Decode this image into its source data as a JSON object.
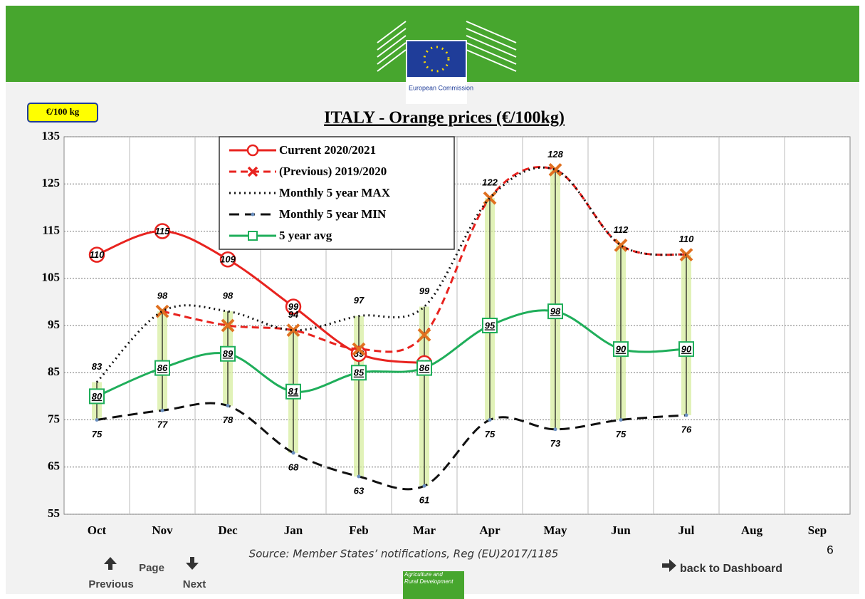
{
  "header": {
    "logo_text": "European Commission",
    "unit_badge": "€/100 kg"
  },
  "chart_data": {
    "type": "line",
    "title": "ITALY  -  Orange  prices    (€/100kg)",
    "categories": [
      "Oct",
      "Nov",
      "Dec",
      "Jan",
      "Feb",
      "Mar",
      "Apr",
      "May",
      "Jun",
      "Jul",
      "Aug",
      "Sep"
    ],
    "ylim": [
      55,
      135
    ],
    "yticks": [
      55,
      65,
      75,
      85,
      95,
      105,
      115,
      125,
      135
    ],
    "grid": true,
    "series": [
      {
        "name": "Current 2020/2021",
        "color": "#e8231f",
        "style": "solid",
        "marker": "circle",
        "values": [
          110,
          115,
          109,
          99,
          89,
          87,
          null,
          null,
          null,
          null,
          null,
          null
        ]
      },
      {
        "name": "(Previous) 2019/2020",
        "color": "#e8231f",
        "style": "dashed",
        "marker": "cross",
        "values": [
          null,
          98,
          95,
          94,
          90,
          93,
          122,
          128,
          112,
          110,
          null,
          null
        ]
      },
      {
        "name": "Monthly 5 year MAX",
        "color": "#111111",
        "style": "dotted",
        "marker": "none",
        "values": [
          83,
          98,
          98,
          94,
          97,
          99,
          122,
          128,
          112,
          110,
          null,
          null
        ]
      },
      {
        "name": "Monthly 5 year MIN",
        "color": "#111111",
        "style": "longdash",
        "marker": "dot",
        "values": [
          75,
          77,
          78,
          68,
          63,
          61,
          75,
          73,
          75,
          76,
          null,
          null
        ]
      },
      {
        "name": "5 year avg",
        "color": "#1fae5a",
        "style": "solid",
        "marker": "square",
        "values": [
          80,
          86,
          89,
          81,
          85,
          86,
          95,
          98,
          90,
          90,
          null,
          null
        ]
      }
    ]
  },
  "footer": {
    "source": "Source: Member States’ notifications, Reg (EU)2017/1185",
    "page_number": "6",
    "page": "Page",
    "previous": "Previous",
    "next": "Next",
    "back": "back to Dashboard",
    "dg": "Agriculture and Rural Development"
  }
}
